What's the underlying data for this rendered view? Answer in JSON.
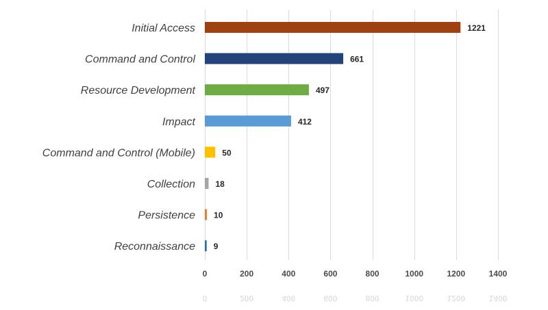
{
  "chart_data": {
    "type": "bar",
    "orientation": "horizontal",
    "title": "",
    "xlabel": "",
    "ylabel": "",
    "categories": [
      "Initial Access",
      "Command and Control",
      "Resource Development",
      "Impact",
      "Command and Control (Mobile)",
      "Collection",
      "Persistence",
      "Reconnaissance"
    ],
    "values": [
      1221,
      661,
      497,
      412,
      50,
      18,
      10,
      9
    ],
    "colors": [
      "#9E4213",
      "#23437A",
      "#6EAB45",
      "#5B9BD5",
      "#FFC000",
      "#A5A5A5",
      "#ED7D31",
      "#2E6BB8"
    ],
    "xlim": [
      0,
      1400
    ],
    "xticks": [
      0,
      200,
      400,
      600,
      800,
      1000,
      1200,
      1400
    ],
    "grid": "vertical",
    "legend": "none",
    "data_labels": true
  }
}
